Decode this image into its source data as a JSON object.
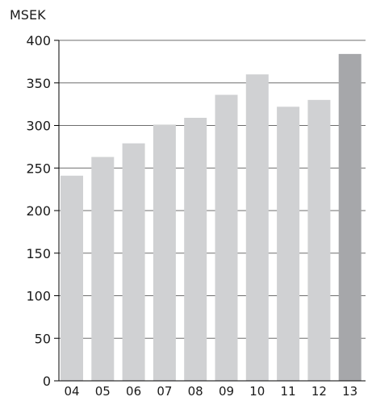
{
  "chart_data": {
    "type": "bar",
    "title": "",
    "unit_label": "MSEK",
    "xlabel": "",
    "ylabel": "MSEK",
    "ylim": [
      0,
      400
    ],
    "y_ticks": [
      0,
      50,
      100,
      150,
      200,
      250,
      300,
      350,
      400
    ],
    "grid": true,
    "categories": [
      "04",
      "05",
      "06",
      "07",
      "08",
      "09",
      "10",
      "11",
      "12",
      "13"
    ],
    "values": [
      241,
      263,
      279,
      301,
      309,
      336,
      360,
      322,
      330,
      384
    ],
    "colors": {
      "bar": "#d0d1d3",
      "highlight_bar": "#a6a7aa",
      "grid": "#6e6e6e",
      "axis": "#000000",
      "text": "#1a1a1a"
    },
    "highlight_index": 9
  }
}
